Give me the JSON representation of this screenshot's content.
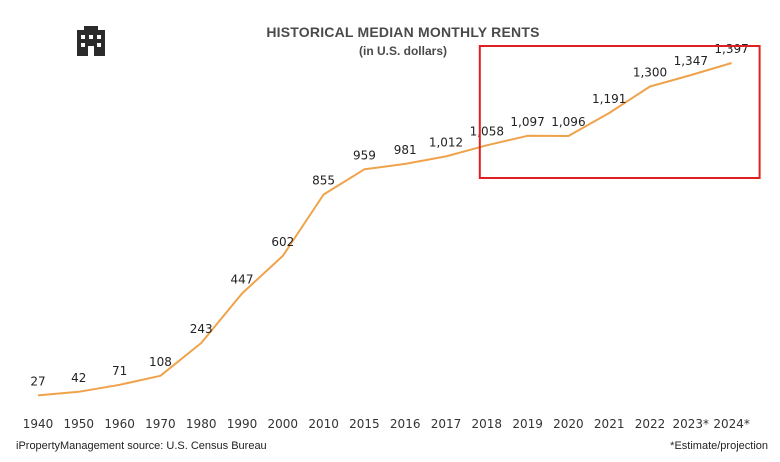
{
  "header": {
    "title": "HISTORICAL MEDIAN MONTHLY RENTS",
    "subtitle": "(in U.S. dollars)"
  },
  "footer": {
    "source": "iPropertyManagement source: U.S. Census Bureau",
    "footnote": "*Estimate/projection"
  },
  "logo_icon": "building-icon",
  "colors": {
    "line": "#f0a24a",
    "highlight_box": "#e02020",
    "text": "#222222"
  },
  "highlight": {
    "from_category": "2018",
    "to_category": "2024*"
  },
  "chart_data": {
    "type": "line",
    "title": "HISTORICAL MEDIAN MONTHLY RENTS",
    "subtitle": "(in U.S. dollars)",
    "xlabel": "",
    "ylabel": "",
    "categories": [
      "1940",
      "1950",
      "1960",
      "1970",
      "1980",
      "1990",
      "2000",
      "2010",
      "2015",
      "2016",
      "2017",
      "2018",
      "2019",
      "2020",
      "2021",
      "2022",
      "2023*",
      "2024*"
    ],
    "series": [
      {
        "values": [
          27,
          42,
          71,
          108,
          243,
          447,
          602,
          855,
          959,
          981,
          1012,
          1058,
          1097,
          1096,
          1191,
          1300,
          1347,
          1397
        ],
        "labels": [
          "27",
          "42",
          "71",
          "108",
          "243",
          "447",
          "602",
          "855",
          "959",
          "981",
          "1,012",
          "1,058",
          "1,097",
          "1,096",
          "1,191",
          "1,300",
          "1,347",
          "1,397"
        ]
      }
    ],
    "ylim": [
      0,
      1500
    ],
    "grid": false,
    "legend": "none"
  }
}
